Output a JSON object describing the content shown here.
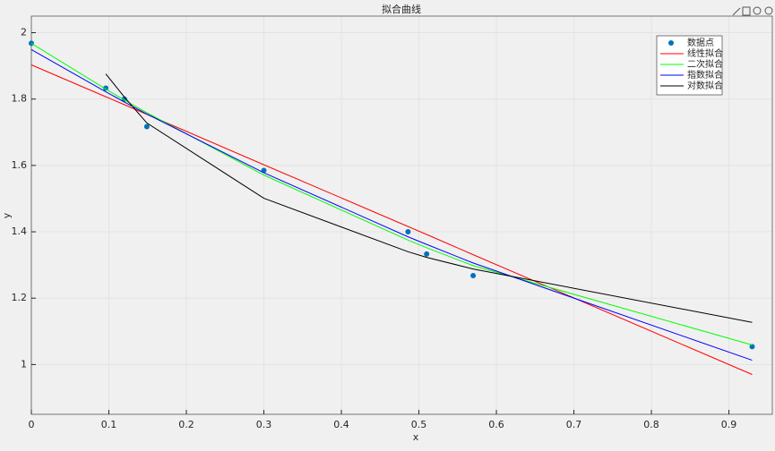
{
  "chart_data": {
    "type": "line",
    "title": "拟合曲线",
    "x_label": "x",
    "y_label": "y",
    "x": [
      0,
      0.096,
      0.12,
      0.149,
      0.3,
      0.486,
      0.51,
      0.57,
      0.93
    ],
    "series": [
      {
        "name": "数据点",
        "mode": "markers",
        "color": "#0072bd",
        "values": [
          1.968,
          1.833,
          1.8,
          1.717,
          1.585,
          1.4,
          1.333,
          1.268,
          1.054
        ]
      },
      {
        "name": "线性拟合",
        "mode": "lines",
        "color": "#ff0000",
        "values": [
          1.903,
          1.807,
          1.783,
          1.754,
          1.602,
          1.416,
          1.392,
          1.331,
          0.97
        ]
      },
      {
        "name": "二次拟合",
        "mode": "lines",
        "color": "#00ff00",
        "values": [
          1.968,
          1.83,
          1.797,
          1.759,
          1.571,
          1.375,
          1.352,
          1.298,
          1.059
        ]
      },
      {
        "name": "指数拟合",
        "mode": "lines",
        "color": "#0000ff",
        "values": [
          1.949,
          1.822,
          1.791,
          1.755,
          1.578,
          1.385,
          1.362,
          1.306,
          1.013
        ]
      },
      {
        "name": "对数拟合",
        "mode": "lines",
        "color": "#000000",
        "values": [
          null,
          1.876,
          1.806,
          1.728,
          1.501,
          1.34,
          1.323,
          1.288,
          1.127
        ]
      }
    ],
    "xlim": [
      0,
      0.956
    ],
    "xticks": [
      0,
      0.1,
      0.2,
      0.3,
      0.4,
      0.5,
      0.6,
      0.7,
      0.8,
      0.9
    ],
    "ylim": [
      0.85,
      2.05
    ],
    "yticks": [
      1,
      1.2,
      1.4,
      1.6,
      1.8,
      2
    ],
    "grid": true,
    "legend": "top-right"
  }
}
